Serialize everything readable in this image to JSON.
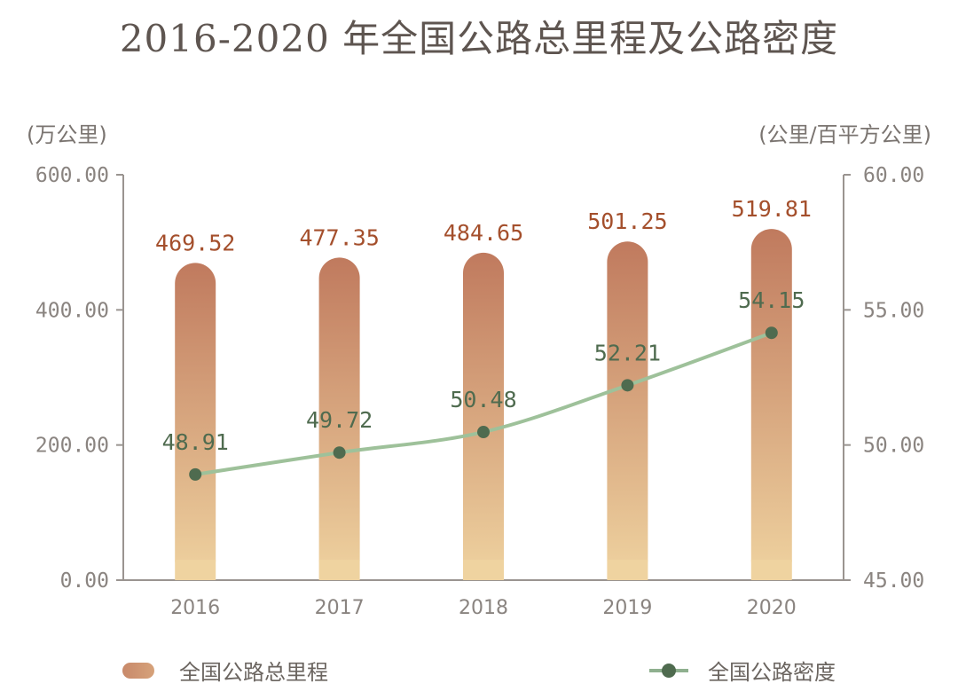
{
  "title": "2016-2020 年全国公路总里程及公路密度",
  "left_unit": "(万公里)",
  "right_unit": "(公里/百平方公里)",
  "colors": {
    "bar_top": "#c07a5e",
    "bar_bottom": "#efd3a0",
    "bar_label": "#a44f2c",
    "line": "#9ec19a",
    "point": "#4f6b4f",
    "line_label": "#4f6b4f",
    "axis": "#9a9490",
    "tick_text": "#8a8480"
  },
  "legend": {
    "bar": "全国公路总里程",
    "line": "全国公路密度"
  },
  "chart_data": {
    "type": "bar",
    "categories": [
      "2016",
      "2017",
      "2018",
      "2019",
      "2020"
    ],
    "series": [
      {
        "name": "全国公路总里程",
        "type": "bar",
        "axis": "left",
        "values": [
          469.52,
          477.35,
          484.65,
          501.25,
          519.81
        ],
        "labels": [
          "469.52",
          "477.35",
          "484.65",
          "501.25",
          "519.81"
        ]
      },
      {
        "name": "全国公路密度",
        "type": "line",
        "axis": "right",
        "values": [
          48.91,
          49.72,
          50.48,
          52.21,
          54.15
        ],
        "labels": [
          "48.91",
          "49.72",
          "50.48",
          "52.21",
          "54.15"
        ]
      }
    ],
    "y_left": {
      "min": 0,
      "max": 600,
      "ticks": [
        "0.00",
        "200.00",
        "400.00",
        "600.00"
      ]
    },
    "y_right": {
      "min": 45,
      "max": 60,
      "ticks": [
        "45.00",
        "50.00",
        "55.00",
        "60.00"
      ]
    },
    "grid": false,
    "legend_position": "bottom"
  }
}
